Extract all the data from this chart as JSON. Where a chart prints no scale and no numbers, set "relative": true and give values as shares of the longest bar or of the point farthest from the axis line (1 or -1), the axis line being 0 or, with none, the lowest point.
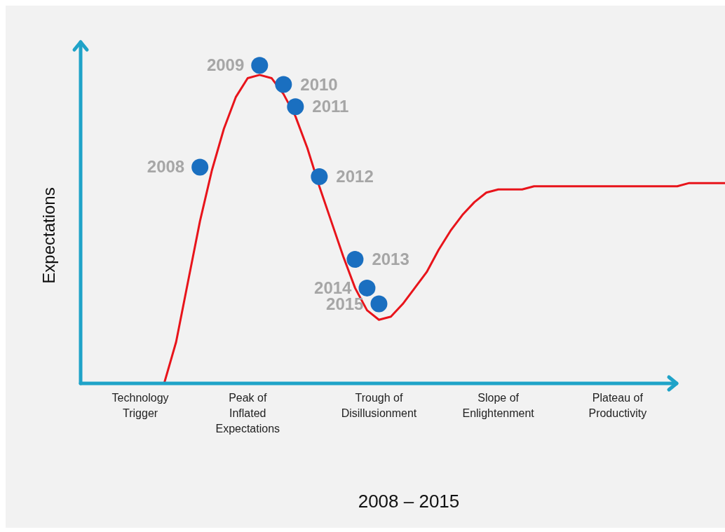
{
  "chart_data": {
    "type": "line",
    "relative": true,
    "xlabel": "2008 – 2015",
    "ylabel": "Expectations",
    "categories": [
      null,
      null,
      null,
      null,
      null,
      "Technology Trigger",
      null,
      null,
      null,
      null,
      null,
      null,
      null,
      null,
      "Peak of Inflated Expectations",
      null,
      null,
      null,
      null,
      null,
      null,
      null,
      null,
      null,
      null,
      "Trough of Disillusionment",
      null,
      null,
      null,
      null,
      null,
      null,
      null,
      null,
      null,
      "Slope of Enlightenment",
      null,
      null,
      null,
      null,
      null,
      null,
      null,
      null,
      null,
      "Plateau of Productivity",
      null,
      null,
      null,
      null,
      null,
      null,
      null,
      null,
      null
    ],
    "annotations": [
      "2008",
      "2009",
      "2010",
      "2011",
      "2012",
      "2013",
      "2014",
      "2015"
    ],
    "series": [
      {
        "color": "#e8141b",
        "values": [
          null,
          null,
          null,
          null,
          null,
          null,
          null,
          0,
          0.13,
          0.32,
          0.51,
          0.67,
          0.8,
          0.9,
          0.96,
          0.97,
          0.96,
          0.91,
          0.84,
          0.74,
          0.62,
          0.51,
          0.4,
          0.3,
          0.23,
          0.2,
          0.21,
          0.25,
          0.3,
          0.35,
          0.42,
          0.48,
          0.53,
          0.57,
          0.6,
          0.61,
          0.61,
          0.61,
          0.62,
          0.62,
          0.62,
          0.62,
          0.62,
          0.62,
          0.62,
          0.62,
          0.62,
          0.62,
          0.62,
          0.62,
          0.62,
          0.63,
          0.63,
          0.63,
          0.63
        ]
      },
      {
        "type": "scatter",
        "color": "#1a6fc0",
        "marker": "circle",
        "values": [
          null,
          null,
          null,
          null,
          null,
          null,
          null,
          null,
          null,
          null,
          0.68,
          null,
          null,
          null,
          null,
          1,
          null,
          0.94,
          0.87,
          null,
          0.65,
          null,
          null,
          0.39,
          0.3,
          0.25,
          null,
          null,
          null,
          null,
          null,
          null,
          null,
          null,
          null,
          null,
          null,
          null,
          null,
          null,
          null,
          null,
          null,
          null,
          null,
          null,
          null,
          null,
          null,
          null,
          null,
          null,
          null,
          null,
          null
        ]
      }
    ]
  }
}
